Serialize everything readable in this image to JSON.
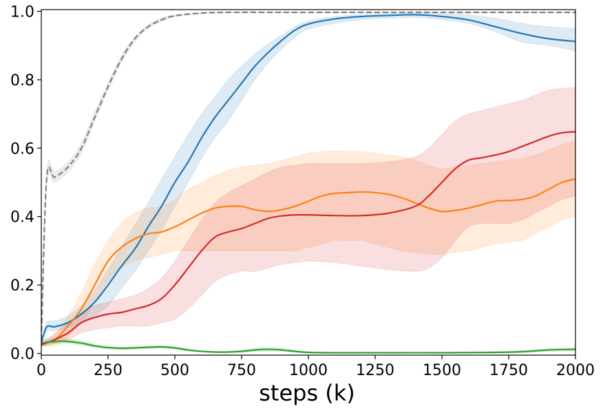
{
  "chart_data": {
    "type": "line",
    "title": "",
    "xlabel": "steps (k)",
    "ylabel": "",
    "xlim": [
      0,
      2000
    ],
    "ylim": [
      -0.005,
      1.005
    ],
    "xticks": [
      0,
      250,
      500,
      750,
      1000,
      1250,
      1500,
      1750,
      2000
    ],
    "yticks": [
      0.0,
      0.2,
      0.4,
      0.6,
      0.8,
      1.0
    ],
    "xtick_labels": [
      "0",
      "250",
      "500",
      "750",
      "1000",
      "1250",
      "1500",
      "1750",
      "2000"
    ],
    "ytick_labels": [
      "0.0",
      "0.2",
      "0.4",
      "0.6",
      "0.8",
      "1.0"
    ],
    "grid": false,
    "series": [
      {
        "name": "gray-dashed",
        "color": "#7f7f7f",
        "dashed": true,
        "band_opacity": 0.15,
        "points": [
          [
            0,
            0.04,
            0.04,
            0.04
          ],
          [
            20,
            0.51,
            0.49,
            0.53
          ],
          [
            50,
            0.515,
            0.5,
            0.53
          ],
          [
            100,
            0.545,
            0.53,
            0.56
          ],
          [
            150,
            0.6,
            0.585,
            0.615
          ],
          [
            200,
            0.69,
            0.68,
            0.705
          ],
          [
            250,
            0.78,
            0.77,
            0.79
          ],
          [
            300,
            0.86,
            0.85,
            0.87
          ],
          [
            350,
            0.92,
            0.91,
            0.925
          ],
          [
            400,
            0.955,
            0.95,
            0.96
          ],
          [
            450,
            0.975,
            0.97,
            0.98
          ],
          [
            500,
            0.987,
            0.984,
            0.99
          ],
          [
            600,
            0.995,
            0.993,
            0.997
          ],
          [
            700,
            0.997,
            0.995,
            0.998
          ],
          [
            1000,
            0.997,
            0.996,
            0.998
          ],
          [
            1500,
            0.997,
            0.996,
            0.998
          ],
          [
            2000,
            0.997,
            0.996,
            0.998
          ]
        ]
      },
      {
        "name": "blue",
        "color": "#1f77b4",
        "dashed": false,
        "band_opacity": 0.15,
        "points": [
          [
            0,
            0.03,
            0.03,
            0.03
          ],
          [
            20,
            0.077,
            0.065,
            0.09
          ],
          [
            50,
            0.078,
            0.067,
            0.095
          ],
          [
            100,
            0.09,
            0.075,
            0.11
          ],
          [
            150,
            0.115,
            0.09,
            0.14
          ],
          [
            200,
            0.15,
            0.11,
            0.185
          ],
          [
            250,
            0.2,
            0.14,
            0.245
          ],
          [
            300,
            0.255,
            0.19,
            0.31
          ],
          [
            350,
            0.305,
            0.24,
            0.375
          ],
          [
            400,
            0.37,
            0.3,
            0.44
          ],
          [
            450,
            0.43,
            0.36,
            0.51
          ],
          [
            500,
            0.5,
            0.43,
            0.575
          ],
          [
            550,
            0.56,
            0.5,
            0.64
          ],
          [
            600,
            0.63,
            0.57,
            0.7
          ],
          [
            650,
            0.69,
            0.63,
            0.75
          ],
          [
            700,
            0.74,
            0.68,
            0.8
          ],
          [
            750,
            0.79,
            0.74,
            0.84
          ],
          [
            800,
            0.84,
            0.8,
            0.875
          ],
          [
            850,
            0.88,
            0.85,
            0.905
          ],
          [
            900,
            0.915,
            0.89,
            0.93
          ],
          [
            950,
            0.945,
            0.925,
            0.955
          ],
          [
            1000,
            0.963,
            0.948,
            0.972
          ],
          [
            1100,
            0.978,
            0.965,
            0.985
          ],
          [
            1200,
            0.985,
            0.976,
            0.99
          ],
          [
            1300,
            0.988,
            0.98,
            0.993
          ],
          [
            1400,
            0.99,
            0.982,
            0.995
          ],
          [
            1500,
            0.985,
            0.975,
            0.993
          ],
          [
            1600,
            0.975,
            0.965,
            0.99
          ],
          [
            1700,
            0.955,
            0.94,
            0.98
          ],
          [
            1800,
            0.935,
            0.91,
            0.965
          ],
          [
            1900,
            0.92,
            0.9,
            0.955
          ],
          [
            2000,
            0.912,
            0.885,
            0.95
          ]
        ]
      },
      {
        "name": "orange",
        "color": "#ff7f0e",
        "dashed": false,
        "band_opacity": 0.15,
        "points": [
          [
            0,
            0.03,
            0.025,
            0.035
          ],
          [
            50,
            0.04,
            0.02,
            0.06
          ],
          [
            100,
            0.08,
            0.05,
            0.11
          ],
          [
            150,
            0.13,
            0.09,
            0.18
          ],
          [
            200,
            0.2,
            0.15,
            0.26
          ],
          [
            250,
            0.27,
            0.21,
            0.33
          ],
          [
            300,
            0.31,
            0.25,
            0.38
          ],
          [
            350,
            0.335,
            0.27,
            0.41
          ],
          [
            400,
            0.35,
            0.28,
            0.425
          ],
          [
            450,
            0.355,
            0.29,
            0.43
          ],
          [
            500,
            0.37,
            0.3,
            0.45
          ],
          [
            550,
            0.39,
            0.3,
            0.48
          ],
          [
            600,
            0.41,
            0.3,
            0.5
          ],
          [
            650,
            0.425,
            0.3,
            0.52
          ],
          [
            700,
            0.43,
            0.3,
            0.535
          ],
          [
            750,
            0.43,
            0.3,
            0.545
          ],
          [
            800,
            0.42,
            0.3,
            0.55
          ],
          [
            850,
            0.415,
            0.3,
            0.555
          ],
          [
            900,
            0.42,
            0.3,
            0.565
          ],
          [
            950,
            0.43,
            0.3,
            0.575
          ],
          [
            1000,
            0.445,
            0.31,
            0.585
          ],
          [
            1050,
            0.46,
            0.32,
            0.59
          ],
          [
            1100,
            0.468,
            0.33,
            0.592
          ],
          [
            1150,
            0.47,
            0.33,
            0.59
          ],
          [
            1200,
            0.472,
            0.33,
            0.59
          ],
          [
            1250,
            0.47,
            0.32,
            0.585
          ],
          [
            1300,
            0.465,
            0.31,
            0.58
          ],
          [
            1350,
            0.455,
            0.3,
            0.575
          ],
          [
            1400,
            0.44,
            0.295,
            0.565
          ],
          [
            1450,
            0.425,
            0.29,
            0.55
          ],
          [
            1500,
            0.415,
            0.29,
            0.54
          ],
          [
            1550,
            0.418,
            0.295,
            0.545
          ],
          [
            1600,
            0.425,
            0.3,
            0.55
          ],
          [
            1650,
            0.435,
            0.31,
            0.555
          ],
          [
            1700,
            0.445,
            0.32,
            0.56
          ],
          [
            1750,
            0.447,
            0.325,
            0.565
          ],
          [
            1800,
            0.45,
            0.33,
            0.57
          ],
          [
            1850,
            0.46,
            0.35,
            0.58
          ],
          [
            1900,
            0.48,
            0.37,
            0.595
          ],
          [
            1950,
            0.5,
            0.39,
            0.61
          ],
          [
            2000,
            0.51,
            0.4,
            0.622
          ]
        ]
      },
      {
        "name": "red",
        "color": "#d62728",
        "dashed": false,
        "band_opacity": 0.15,
        "points": [
          [
            0,
            0.025,
            0.02,
            0.03
          ],
          [
            50,
            0.04,
            0.03,
            0.055
          ],
          [
            100,
            0.06,
            0.04,
            0.09
          ],
          [
            150,
            0.09,
            0.06,
            0.12
          ],
          [
            200,
            0.105,
            0.07,
            0.14
          ],
          [
            250,
            0.115,
            0.075,
            0.15
          ],
          [
            300,
            0.12,
            0.08,
            0.16
          ],
          [
            350,
            0.13,
            0.08,
            0.17
          ],
          [
            400,
            0.14,
            0.08,
            0.19
          ],
          [
            450,
            0.16,
            0.09,
            0.22
          ],
          [
            500,
            0.2,
            0.1,
            0.27
          ],
          [
            550,
            0.25,
            0.13,
            0.33
          ],
          [
            600,
            0.3,
            0.17,
            0.39
          ],
          [
            650,
            0.34,
            0.21,
            0.44
          ],
          [
            700,
            0.355,
            0.23,
            0.47
          ],
          [
            750,
            0.365,
            0.24,
            0.49
          ],
          [
            800,
            0.38,
            0.24,
            0.51
          ],
          [
            850,
            0.395,
            0.25,
            0.53
          ],
          [
            900,
            0.402,
            0.26,
            0.545
          ],
          [
            950,
            0.405,
            0.265,
            0.55
          ],
          [
            1000,
            0.405,
            0.27,
            0.555
          ],
          [
            1100,
            0.403,
            0.265,
            0.555
          ],
          [
            1200,
            0.403,
            0.255,
            0.555
          ],
          [
            1300,
            0.41,
            0.245,
            0.56
          ],
          [
            1400,
            0.43,
            0.24,
            0.575
          ],
          [
            1450,
            0.46,
            0.25,
            0.6
          ],
          [
            1500,
            0.5,
            0.28,
            0.64
          ],
          [
            1550,
            0.54,
            0.33,
            0.68
          ],
          [
            1600,
            0.565,
            0.37,
            0.7
          ],
          [
            1650,
            0.572,
            0.38,
            0.71
          ],
          [
            1700,
            0.58,
            0.38,
            0.72
          ],
          [
            1750,
            0.59,
            0.38,
            0.73
          ],
          [
            1800,
            0.605,
            0.39,
            0.74
          ],
          [
            1850,
            0.62,
            0.41,
            0.755
          ],
          [
            1900,
            0.635,
            0.43,
            0.77
          ],
          [
            1950,
            0.645,
            0.45,
            0.775
          ],
          [
            2000,
            0.648,
            0.46,
            0.778
          ]
        ]
      },
      {
        "name": "green",
        "color": "#2ca02c",
        "dashed": false,
        "band_opacity": 0.15,
        "points": [
          [
            0,
            0.03,
            0.022,
            0.038
          ],
          [
            50,
            0.035,
            0.028,
            0.042
          ],
          [
            100,
            0.035,
            0.028,
            0.042
          ],
          [
            150,
            0.03,
            0.024,
            0.036
          ],
          [
            200,
            0.022,
            0.017,
            0.027
          ],
          [
            250,
            0.017,
            0.013,
            0.021
          ],
          [
            300,
            0.015,
            0.011,
            0.019
          ],
          [
            350,
            0.016,
            0.012,
            0.02
          ],
          [
            400,
            0.018,
            0.014,
            0.022
          ],
          [
            450,
            0.019,
            0.015,
            0.023
          ],
          [
            500,
            0.016,
            0.012,
            0.02
          ],
          [
            550,
            0.01,
            0.007,
            0.013
          ],
          [
            600,
            0.006,
            0.004,
            0.008
          ],
          [
            650,
            0.004,
            0.002,
            0.006
          ],
          [
            700,
            0.004,
            0.002,
            0.006
          ],
          [
            750,
            0.006,
            0.003,
            0.009
          ],
          [
            800,
            0.01,
            0.006,
            0.015
          ],
          [
            850,
            0.012,
            0.007,
            0.018
          ],
          [
            900,
            0.01,
            0.006,
            0.015
          ],
          [
            950,
            0.006,
            0.003,
            0.009
          ],
          [
            1000,
            0.003,
            0.001,
            0.005
          ],
          [
            1100,
            0.002,
            0.001,
            0.003
          ],
          [
            1300,
            0.002,
            0.001,
            0.003
          ],
          [
            1500,
            0.002,
            0.001,
            0.003
          ],
          [
            1700,
            0.003,
            0.001,
            0.005
          ],
          [
            1800,
            0.005,
            0.002,
            0.008
          ],
          [
            1900,
            0.01,
            0.006,
            0.014
          ],
          [
            2000,
            0.012,
            0.008,
            0.016
          ]
        ]
      }
    ]
  }
}
